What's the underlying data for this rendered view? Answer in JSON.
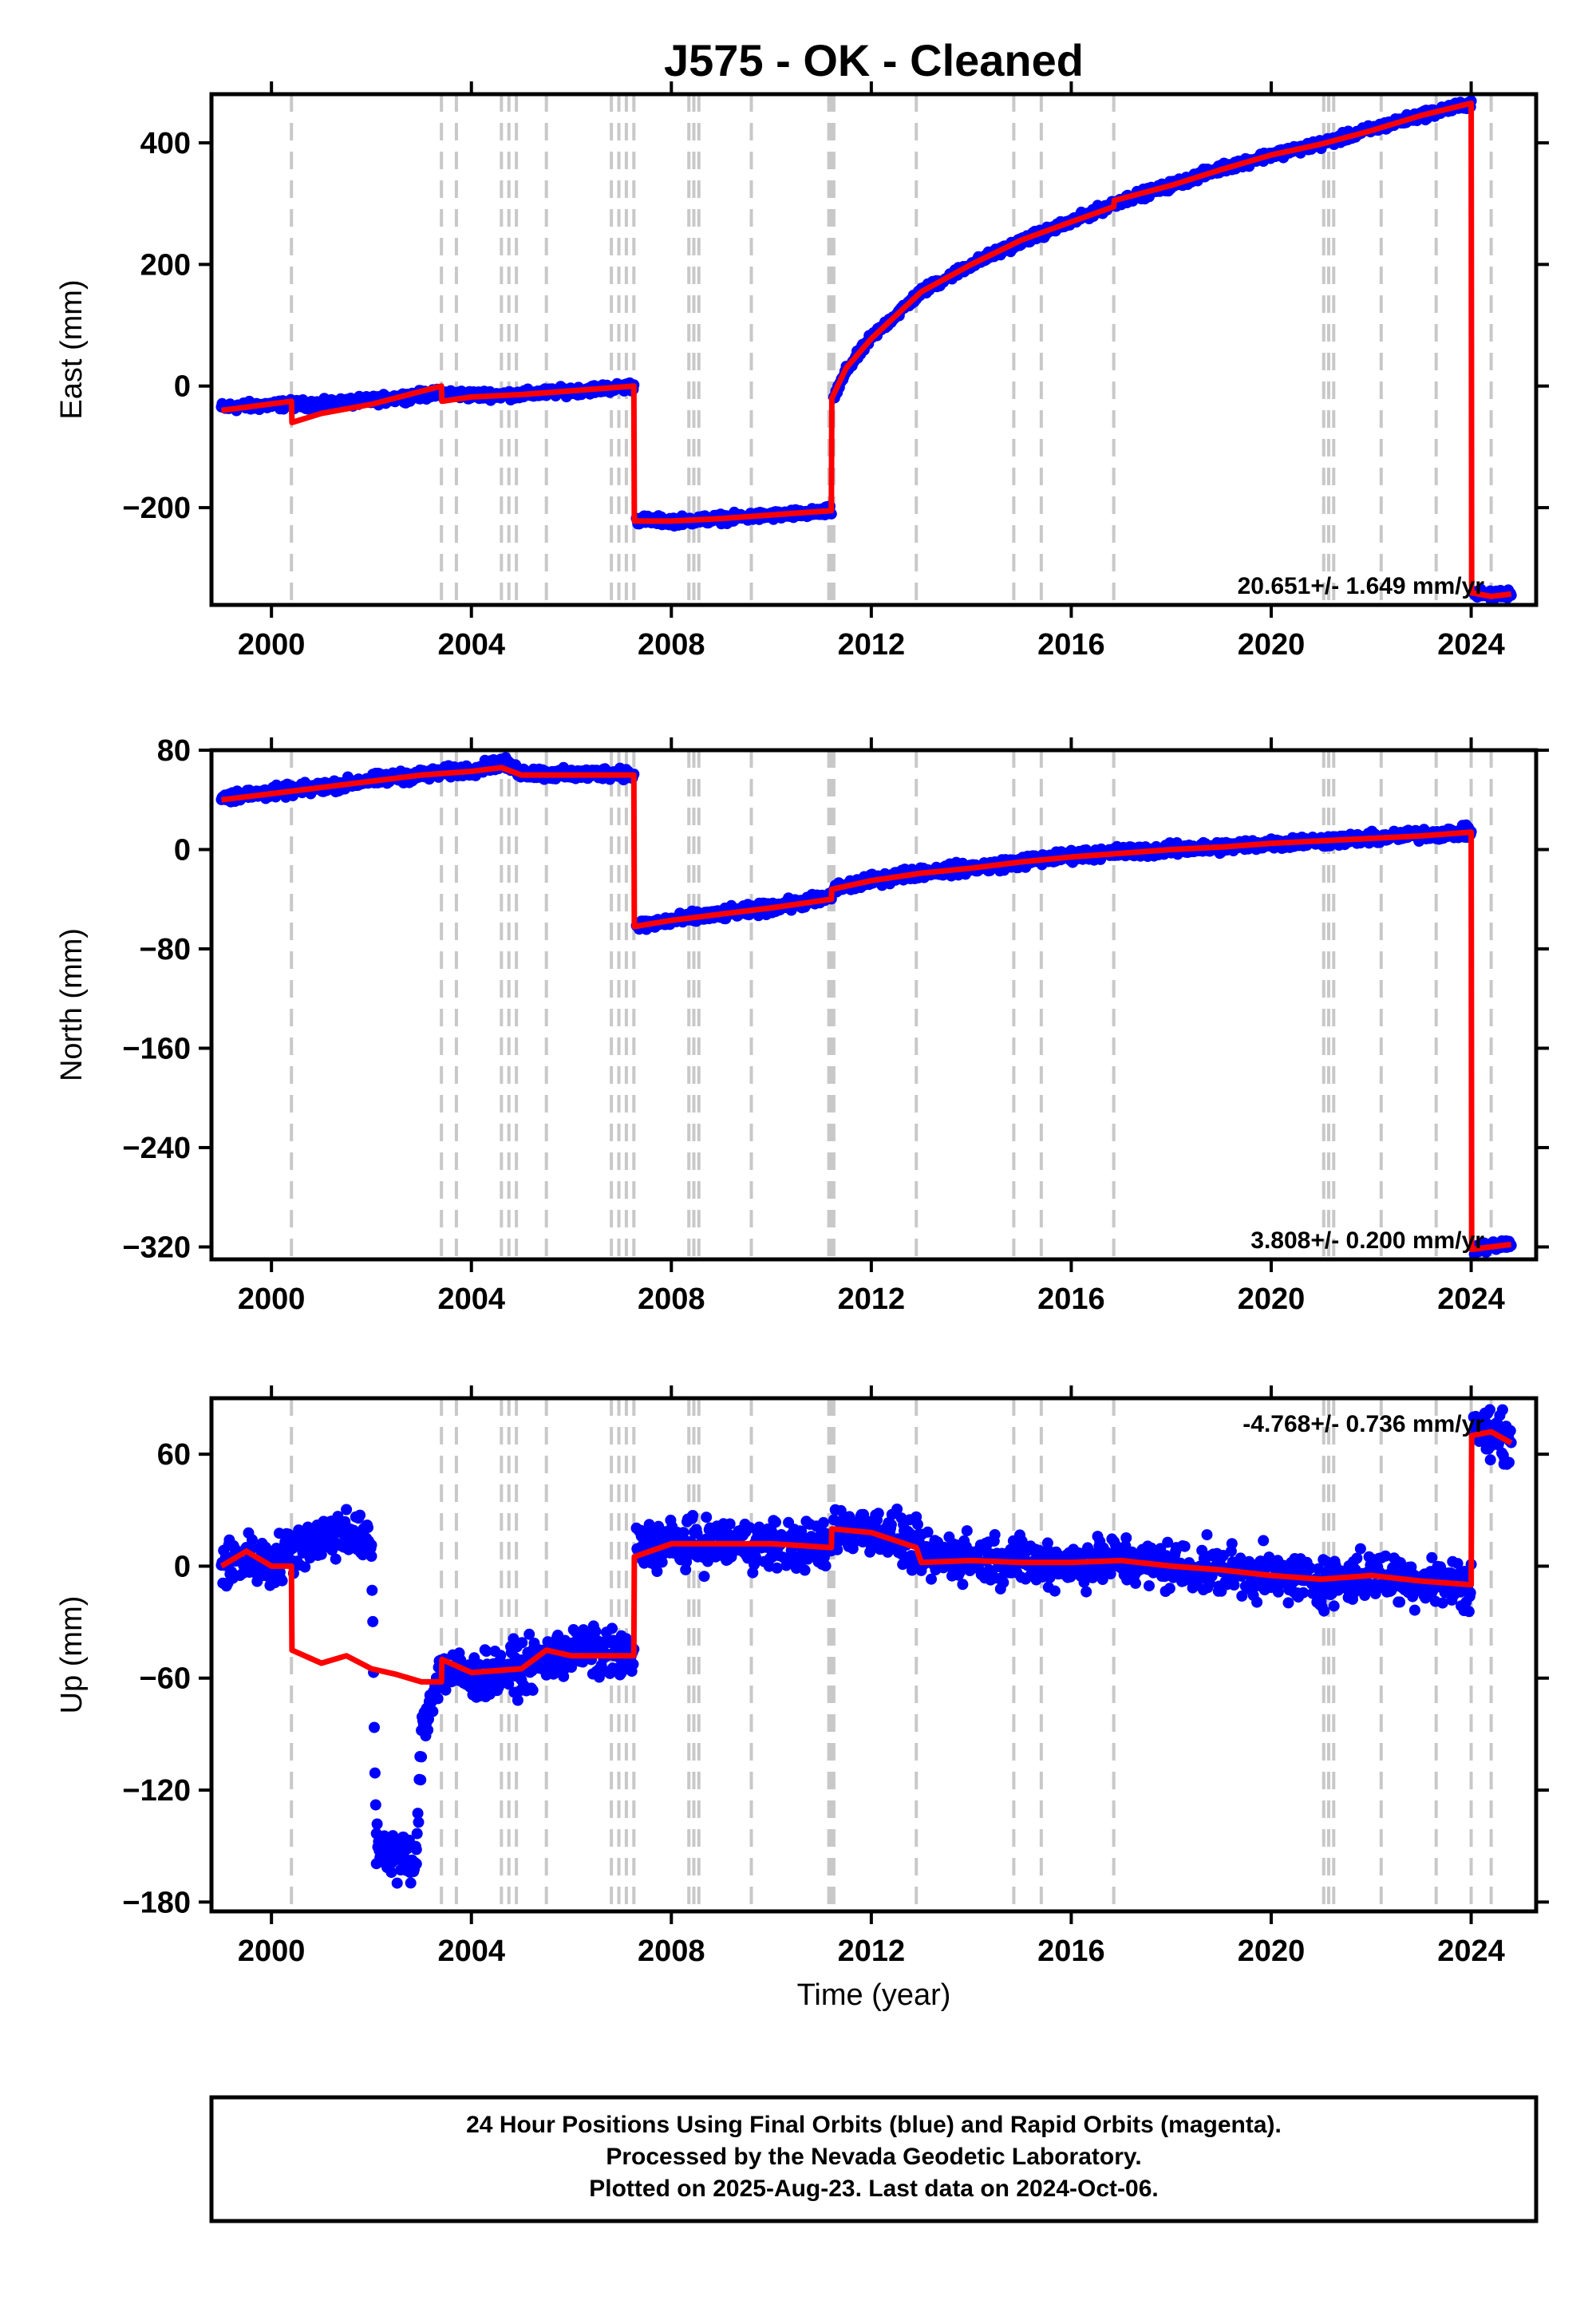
{
  "chart_data": {
    "type": "scatter",
    "title": "J575  - OK - Cleaned",
    "xlabel": "Time (year)",
    "xlim": [
      1998.8,
      2025.3
    ],
    "xticks": [
      2000,
      2004,
      2008,
      2012,
      2016,
      2020,
      2024
    ],
    "xtick_labels": [
      "2000",
      "2004",
      "2008",
      "2012",
      "2016",
      "2020",
      "2024"
    ],
    "colors": {
      "observed": "#0000ff",
      "model": "#ff0000",
      "offset_lines": "#c8c8c8",
      "frame": "#000000"
    },
    "offset_epochs": [
      2000.4,
      2003.4,
      2003.7,
      2004.6,
      2004.75,
      2004.9,
      2005.5,
      2006.8,
      2006.95,
      2007.1,
      2007.25,
      2008.35,
      2008.45,
      2008.55,
      2009.6,
      2011.15,
      2011.2,
      2011.25,
      2012.9,
      2014.85,
      2015.4,
      2016.85,
      2021.05,
      2021.15,
      2021.25,
      2022.2,
      2023.3,
      2024.0,
      2024.4
    ],
    "panels": [
      {
        "name": "east",
        "ylabel": "East (mm)",
        "ylim": [
          -360,
          480
        ],
        "yticks": [
          -200,
          0,
          200,
          400
        ],
        "ytick_labels": [
          "−200",
          "0",
          "200",
          "400"
        ],
        "rate_label": "20.651+/- 1.649 mm/yr",
        "rate_position": "bottom-right",
        "observed": [
          [
            1999.0,
            -35
          ],
          [
            2000.4,
            -30
          ],
          [
            2001.0,
            -30
          ],
          [
            2002.0,
            -24
          ],
          [
            2003.0,
            -15
          ],
          [
            2003.4,
            -12
          ],
          [
            2004.0,
            -15
          ],
          [
            2005.0,
            -14
          ],
          [
            2006.0,
            -8
          ],
          [
            2007.0,
            -2
          ],
          [
            2007.25,
            0
          ],
          [
            2007.3,
            -220
          ],
          [
            2008.0,
            -222
          ],
          [
            2009.0,
            -218
          ],
          [
            2010.0,
            -213
          ],
          [
            2011.0,
            -208
          ],
          [
            2011.2,
            -205
          ],
          [
            2011.25,
            -20
          ],
          [
            2011.5,
            25
          ],
          [
            2012.0,
            80
          ],
          [
            2013.0,
            155
          ],
          [
            2014.0,
            200
          ],
          [
            2015.0,
            238
          ],
          [
            2016.0,
            270
          ],
          [
            2017.0,
            305
          ],
          [
            2018.0,
            330
          ],
          [
            2019.0,
            358
          ],
          [
            2020.0,
            380
          ],
          [
            2021.0,
            398
          ],
          [
            2022.0,
            422
          ],
          [
            2023.0,
            445
          ],
          [
            2024.0,
            465
          ],
          [
            2024.05,
            -340
          ],
          [
            2024.4,
            -345
          ],
          [
            2024.8,
            -340
          ]
        ],
        "model": [
          [
            1999.0,
            -40
          ],
          [
            2000.4,
            -25
          ],
          [
            2000.41,
            -60
          ],
          [
            2001.0,
            -45
          ],
          [
            2002.0,
            -30
          ],
          [
            2003.4,
            0
          ],
          [
            2003.41,
            -25
          ],
          [
            2004.0,
            -18
          ],
          [
            2005.0,
            -14
          ],
          [
            2006.0,
            -8
          ],
          [
            2007.25,
            0
          ],
          [
            2007.26,
            -222
          ],
          [
            2008.0,
            -222
          ],
          [
            2009.0,
            -218
          ],
          [
            2010.0,
            -212
          ],
          [
            2011.2,
            -205
          ],
          [
            2011.21,
            -20
          ],
          [
            2011.5,
            30
          ],
          [
            2012.0,
            78
          ],
          [
            2013.0,
            155
          ],
          [
            2014.0,
            200
          ],
          [
            2015.0,
            240
          ],
          [
            2016.0,
            270
          ],
          [
            2016.85,
            295
          ],
          [
            2016.86,
            305
          ],
          [
            2018.0,
            330
          ],
          [
            2019.0,
            356
          ],
          [
            2020.0,
            380
          ],
          [
            2021.0,
            398
          ],
          [
            2022.0,
            420
          ],
          [
            2023.0,
            445
          ],
          [
            2024.0,
            465
          ],
          [
            2024.01,
            -340
          ],
          [
            2024.4,
            -346
          ],
          [
            2024.8,
            -342
          ]
        ]
      },
      {
        "name": "north",
        "ylabel": "North (mm)",
        "ylim": [
          -330,
          80
        ],
        "yticks": [
          -320,
          -240,
          -160,
          -80,
          0,
          80
        ],
        "ytick_labels": [
          "−320",
          "−240",
          "−160",
          "−80",
          "0",
          "80"
        ],
        "rate_label": "3.808+/- 0.200 mm/yr",
        "rate_position": "bottom-right",
        "observed": [
          [
            1999.0,
            42
          ],
          [
            2000.0,
            46
          ],
          [
            2001.0,
            50
          ],
          [
            2002.0,
            56
          ],
          [
            2003.0,
            60
          ],
          [
            2004.0,
            64
          ],
          [
            2004.6,
            70
          ],
          [
            2005.0,
            62
          ],
          [
            2006.0,
            60
          ],
          [
            2007.0,
            62
          ],
          [
            2007.25,
            60
          ],
          [
            2007.3,
            -62
          ],
          [
            2008.0,
            -57
          ],
          [
            2009.0,
            -52
          ],
          [
            2010.0,
            -47
          ],
          [
            2011.0,
            -40
          ],
          [
            2011.2,
            -38
          ],
          [
            2011.25,
            -32
          ],
          [
            2012.0,
            -25
          ],
          [
            2013.0,
            -18
          ],
          [
            2014.0,
            -15
          ],
          [
            2015.0,
            -10
          ],
          [
            2016.0,
            -5
          ],
          [
            2017.0,
            -2
          ],
          [
            2018.0,
            0
          ],
          [
            2019.0,
            2
          ],
          [
            2020.0,
            5
          ],
          [
            2021.0,
            7
          ],
          [
            2022.0,
            9
          ],
          [
            2023.0,
            12
          ],
          [
            2024.0,
            14
          ],
          [
            2024.05,
            -322
          ],
          [
            2024.4,
            -320
          ],
          [
            2024.8,
            -317
          ]
        ],
        "model": [
          [
            1999.0,
            40
          ],
          [
            2000.0,
            45
          ],
          [
            2001.0,
            50
          ],
          [
            2002.0,
            55
          ],
          [
            2003.0,
            60
          ],
          [
            2004.0,
            63
          ],
          [
            2004.6,
            66
          ],
          [
            2005.0,
            60
          ],
          [
            2006.0,
            60
          ],
          [
            2007.25,
            60
          ],
          [
            2007.26,
            -62
          ],
          [
            2008.0,
            -57
          ],
          [
            2009.0,
            -52
          ],
          [
            2010.0,
            -47
          ],
          [
            2011.2,
            -40
          ],
          [
            2011.21,
            -32
          ],
          [
            2012.0,
            -25
          ],
          [
            2013.0,
            -19
          ],
          [
            2014.0,
            -15
          ],
          [
            2015.0,
            -10
          ],
          [
            2016.0,
            -6
          ],
          [
            2017.0,
            -3
          ],
          [
            2018.0,
            0
          ],
          [
            2019.0,
            2
          ],
          [
            2020.0,
            5
          ],
          [
            2021.0,
            7
          ],
          [
            2022.0,
            9
          ],
          [
            2023.0,
            11
          ],
          [
            2024.0,
            14
          ],
          [
            2024.01,
            -322
          ],
          [
            2024.4,
            -320
          ],
          [
            2024.8,
            -318
          ]
        ]
      },
      {
        "name": "up",
        "ylabel": "Up (mm)",
        "ylim": [
          -185,
          90
        ],
        "yticks": [
          -180,
          -120,
          -60,
          0,
          60
        ],
        "ytick_labels": [
          "−180",
          "−120",
          "−60",
          "0",
          "60"
        ],
        "rate_label": "-4.768+/- 0.736 mm/yr",
        "rate_position": "top-right",
        "observed": [
          [
            1999.0,
            0
          ],
          [
            1999.5,
            5
          ],
          [
            2000.0,
            0
          ],
          [
            2000.4,
            10
          ],
          [
            2001.0,
            15
          ],
          [
            2001.5,
            20
          ],
          [
            2002.0,
            10
          ],
          [
            2002.1,
            -150
          ],
          [
            2002.5,
            -155
          ],
          [
            2002.9,
            -160
          ],
          [
            2003.0,
            -90
          ],
          [
            2003.1,
            -80
          ],
          [
            2003.2,
            -70
          ],
          [
            2003.4,
            -55
          ],
          [
            2004.0,
            -60
          ],
          [
            2005.0,
            -55
          ],
          [
            2006.0,
            -45
          ],
          [
            2007.0,
            -48
          ],
          [
            2007.25,
            -50
          ],
          [
            2007.3,
            10
          ],
          [
            2008.0,
            12
          ],
          [
            2009.0,
            12
          ],
          [
            2010.0,
            12
          ],
          [
            2011.2,
            10
          ],
          [
            2011.25,
            20
          ],
          [
            2012.0,
            20
          ],
          [
            2012.9,
            10
          ],
          [
            2013.0,
            5
          ],
          [
            2014.0,
            5
          ],
          [
            2015.0,
            3
          ],
          [
            2016.0,
            2
          ],
          [
            2017.0,
            3
          ],
          [
            2018.0,
            0
          ],
          [
            2019.0,
            -2
          ],
          [
            2020.0,
            -5
          ],
          [
            2021.0,
            -8
          ],
          [
            2022.0,
            -5
          ],
          [
            2023.0,
            -8
          ],
          [
            2024.0,
            -10
          ],
          [
            2024.05,
            75
          ],
          [
            2024.4,
            70
          ],
          [
            2024.8,
            68
          ]
        ],
        "model": [
          [
            1999.0,
            0
          ],
          [
            1999.5,
            8
          ],
          [
            2000.0,
            0
          ],
          [
            2000.4,
            0
          ],
          [
            2000.41,
            -45
          ],
          [
            2001.0,
            -52
          ],
          [
            2001.5,
            -48
          ],
          [
            2002.0,
            -55
          ],
          [
            2002.5,
            -58
          ],
          [
            2003.0,
            -62
          ],
          [
            2003.4,
            -62
          ],
          [
            2003.41,
            -50
          ],
          [
            2004.0,
            -57
          ],
          [
            2005.0,
            -55
          ],
          [
            2005.5,
            -45
          ],
          [
            2006.0,
            -48
          ],
          [
            2007.0,
            -48
          ],
          [
            2007.25,
            -48
          ],
          [
            2007.26,
            5
          ],
          [
            2008.0,
            12
          ],
          [
            2009.0,
            12
          ],
          [
            2010.0,
            12
          ],
          [
            2011.2,
            10
          ],
          [
            2011.21,
            20
          ],
          [
            2012.0,
            18
          ],
          [
            2012.9,
            10
          ],
          [
            2013.0,
            2
          ],
          [
            2014.0,
            3
          ],
          [
            2015.0,
            2
          ],
          [
            2016.0,
            2
          ],
          [
            2017.0,
            3
          ],
          [
            2018.0,
            0
          ],
          [
            2019.0,
            -2
          ],
          [
            2020.0,
            -5
          ],
          [
            2021.0,
            -7
          ],
          [
            2022.0,
            -5
          ],
          [
            2023.0,
            -8
          ],
          [
            2024.0,
            -10
          ],
          [
            2024.01,
            70
          ],
          [
            2024.4,
            72
          ],
          [
            2024.8,
            66
          ]
        ]
      }
    ],
    "footer_lines": [
      "24 Hour Positions Using Final Orbits (blue) and Rapid Orbits (magenta).",
      "Processed by the Nevada Geodetic Laboratory.",
      "Plotted on 2025-Aug-23. Last data on 2024-Oct-06."
    ]
  }
}
